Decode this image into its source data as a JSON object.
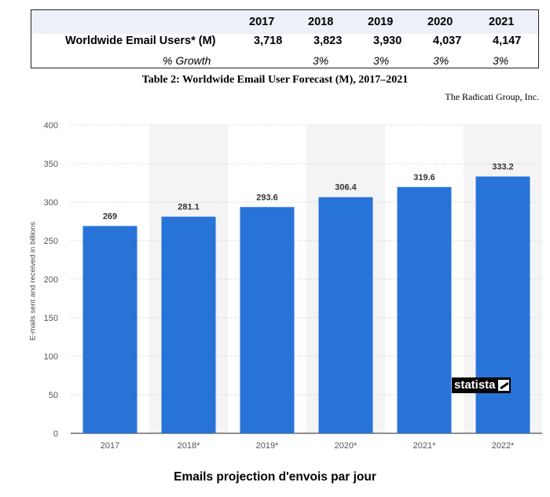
{
  "forecast_table": {
    "years": [
      "2017",
      "2018",
      "2019",
      "2020",
      "2021"
    ],
    "users_label": "Worldwide Email Users* (M)",
    "users": [
      "3,718",
      "3,823",
      "3,930",
      "4,037",
      "4,147"
    ],
    "growth_label": "% Growth",
    "growth": [
      "",
      "3%",
      "3%",
      "3%",
      "3%"
    ],
    "caption": "Table 2: Worldwide Email User Forecast (M), 2017–2021",
    "source": "The Radicati Group, Inc."
  },
  "logo_text": "statista",
  "colors": {
    "bar": "#2873d8",
    "table_header": "#eef0f8",
    "band": "#f4f4f5"
  },
  "chart_data": {
    "type": "bar",
    "title": "Emails projection d'envois par jour",
    "ylabel": "E-mails sent and received in billions",
    "xlabel": "",
    "categories": [
      "2017",
      "2018*",
      "2019*",
      "2020*",
      "2021*",
      "2022*"
    ],
    "values": [
      269,
      281.1,
      293.6,
      306.4,
      319.6,
      333.2
    ],
    "value_labels": [
      "269",
      "281.1",
      "293.6",
      "306.4",
      "319.6",
      "333.2"
    ],
    "ylim": [
      0,
      400
    ],
    "yticks": [
      0,
      50,
      100,
      150,
      200,
      250,
      300,
      350,
      400
    ],
    "grid": true,
    "legend": "none"
  }
}
